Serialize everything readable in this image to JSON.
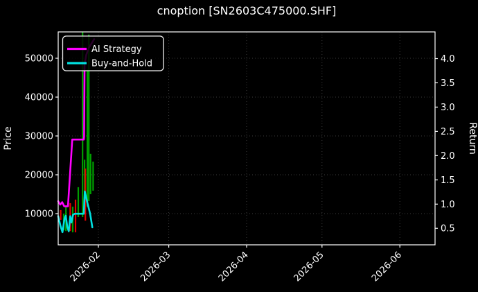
{
  "title": "cnoption [SN2603C475000.SHF]",
  "legend": {
    "items": [
      {
        "label": "AI Strategy",
        "color": "#ff00ff"
      },
      {
        "label": "Buy-and-Hold",
        "color": "#00e0e0"
      }
    ]
  },
  "chart_data": {
    "type": "line",
    "title": "cnoption [SN2603C475000.SHF]",
    "ylabel_left": "Price",
    "ylabel_right": "Return",
    "background": "#000000",
    "grid": "dotted gray, horizontal at price ticks, vertical at month ticks",
    "legend_position": "upper left",
    "x_unit": "days since 2026-01-16",
    "x_epoch": "2026-01-16",
    "x_range_days": [
      0,
      150
    ],
    "x_ticks": [
      {
        "label": "2026-02",
        "day": 16
      },
      {
        "label": "2026-03",
        "day": 44
      },
      {
        "label": "2026-04",
        "day": 75
      },
      {
        "label": "2026-05",
        "day": 105
      },
      {
        "label": "2026-06",
        "day": 136
      }
    ],
    "price_ticks": [
      10000,
      20000,
      30000,
      40000,
      50000
    ],
    "price_ylim": [
      1960,
      56790
    ],
    "return_ticks": [
      0.5,
      1.0,
      1.5,
      2.0,
      2.5,
      3.0,
      3.5,
      4.0
    ],
    "return_ylim": [
      0.16,
      4.55
    ],
    "series": [
      {
        "name": "AI Strategy",
        "axis": "return",
        "color": "#ff00ff",
        "points": [
          [
            0,
            1.06
          ],
          [
            0.8,
            0.99
          ],
          [
            1.6,
            1.04
          ],
          [
            2.4,
            0.955
          ],
          [
            3.9,
            0.955
          ],
          [
            5.6,
            2.33
          ],
          [
            10.2,
            2.33
          ],
          [
            10.3,
            2.39
          ],
          [
            10.5,
            3.88
          ],
          [
            11.2,
            4.08
          ],
          [
            12.2,
            4.22
          ],
          [
            14.3,
            4.4
          ]
        ]
      },
      {
        "name": "Buy-and-Hold",
        "axis": "return",
        "color": "#00e0e0",
        "points": [
          [
            0,
            0.75
          ],
          [
            0.9,
            0.55
          ],
          [
            1.7,
            0.42
          ],
          [
            2.5,
            0.7
          ],
          [
            3.0,
            0.76
          ],
          [
            3.6,
            0.53
          ],
          [
            4.2,
            0.44
          ],
          [
            4.8,
            0.75
          ],
          [
            5.3,
            0.62
          ],
          [
            5.9,
            0.78
          ],
          [
            6.6,
            0.8
          ],
          [
            10.2,
            0.8
          ],
          [
            10.6,
            1.26
          ],
          [
            11.6,
            1.03
          ],
          [
            12.7,
            0.8
          ],
          [
            13.6,
            0.52
          ]
        ]
      }
    ],
    "price_bars": {
      "axis": "price",
      "up_color": "#00a000",
      "down_color": "#e60000",
      "bars": [
        {
          "day": 1.0,
          "high": 10900,
          "low": 8400,
          "dir": "down"
        },
        {
          "day": 2.2,
          "high": 10000,
          "low": 5700,
          "dir": "up"
        },
        {
          "day": 3.1,
          "high": 11800,
          "low": 5500,
          "dir": "up"
        },
        {
          "day": 4.8,
          "high": 12700,
          "low": 5500,
          "dir": "down"
        },
        {
          "day": 5.8,
          "high": 11800,
          "low": 5200,
          "dir": "up"
        },
        {
          "day": 6.9,
          "high": 13600,
          "low": 5200,
          "dir": "down"
        },
        {
          "day": 8.0,
          "high": 16800,
          "low": 9100,
          "dir": "up"
        },
        {
          "day": 9.7,
          "high": 56800,
          "low": 9100,
          "dir": "up"
        },
        {
          "day": 10.5,
          "high": 23900,
          "low": 10000,
          "dir": "up"
        },
        {
          "day": 10.8,
          "high": 21600,
          "low": 8200,
          "dir": "down"
        },
        {
          "day": 11.6,
          "high": 47100,
          "low": 11800,
          "dir": "up"
        },
        {
          "day": 12.2,
          "high": 56100,
          "low": 13200,
          "dir": "up"
        },
        {
          "day": 12.9,
          "high": 25400,
          "low": 15000,
          "dir": "up"
        },
        {
          "day": 13.9,
          "high": 23400,
          "low": 15900,
          "dir": "up"
        }
      ]
    }
  }
}
